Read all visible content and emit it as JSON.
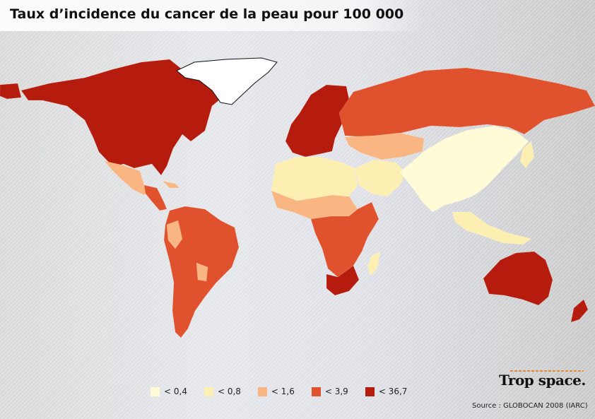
{
  "title": "Taux d’incidence du cancer de la peau pour 100 000",
  "legend": [
    {
      "label": "< 0,4",
      "color": "#fffbd6"
    },
    {
      "label": "< 0,8",
      "color": "#fdeeb1"
    },
    {
      "label": "< 1,6",
      "color": "#f9b682"
    },
    {
      "label": "< 3,9",
      "color": "#e0522e"
    },
    {
      "label": "< 36,7",
      "color": "#b51c0e"
    }
  ],
  "brand": "Trop space.",
  "source": "Source : GLOBOCAN 2008 (IARC)",
  "regions": [
    {
      "name": "north-america",
      "class": 4
    },
    {
      "name": "greenland",
      "class": "none"
    },
    {
      "name": "mexico",
      "class": 2
    },
    {
      "name": "central-america",
      "class": 3
    },
    {
      "name": "south-america",
      "class": 3
    },
    {
      "name": "western-europe",
      "class": 4
    },
    {
      "name": "russia",
      "class": 3
    },
    {
      "name": "north-africa",
      "class": 1
    },
    {
      "name": "sahel",
      "class": 2
    },
    {
      "name": "central-africa",
      "class": 3
    },
    {
      "name": "southern-africa",
      "class": 4
    },
    {
      "name": "madagascar",
      "class": 1
    },
    {
      "name": "middle-east",
      "class": 1
    },
    {
      "name": "central-asia",
      "class": 2
    },
    {
      "name": "china-india",
      "class": 0
    },
    {
      "name": "southeast-asia",
      "class": 1
    },
    {
      "name": "japan",
      "class": 1
    },
    {
      "name": "australia",
      "class": 4
    },
    {
      "name": "new-zealand",
      "class": 4
    }
  ]
}
